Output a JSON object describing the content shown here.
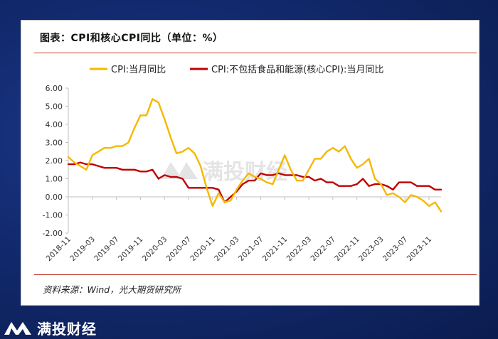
{
  "title": "图表：CPI和核心CPI同比（单位：%）",
  "source": "资料来源：Wind，光大期货研究所",
  "watermark": "满投财经",
  "brand": "满投财经",
  "colors": {
    "cpi": "#f5b800",
    "core": "#c00000",
    "rule": "#c0392b",
    "axis": "#bfbfbf"
  },
  "chart_data": {
    "type": "line",
    "title": "图表：CPI和核心CPI同比（单位：%）",
    "ylim": [
      -2,
      6
    ],
    "yticks": [
      "6.00",
      "5.00",
      "4.00",
      "3.00",
      "2.00",
      "1.00",
      "0.00",
      "-1.00",
      "-2.00"
    ],
    "xticks": [
      {
        "i": 0,
        "label": "2018-11"
      },
      {
        "i": 4,
        "label": "2019-03"
      },
      {
        "i": 8,
        "label": "2019-07"
      },
      {
        "i": 12,
        "label": "2019-11"
      },
      {
        "i": 16,
        "label": "2020-03"
      },
      {
        "i": 20,
        "label": "2020-07"
      },
      {
        "i": 24,
        "label": "2020-11"
      },
      {
        "i": 28,
        "label": "2021-03"
      },
      {
        "i": 32,
        "label": "2021-07"
      },
      {
        "i": 36,
        "label": "2021-11"
      },
      {
        "i": 40,
        "label": "2022-03"
      },
      {
        "i": 44,
        "label": "2022-07"
      },
      {
        "i": 48,
        "label": "2022-11"
      },
      {
        "i": 52,
        "label": "2023-03"
      },
      {
        "i": 56,
        "label": "2023-07"
      },
      {
        "i": 60,
        "label": "2023-11"
      }
    ],
    "x_start": "2018-11",
    "grid": false,
    "legend": "top",
    "series": [
      {
        "name": "CPI:当月同比",
        "color": "#f5b800",
        "values": [
          2.2,
          1.9,
          1.7,
          1.5,
          2.3,
          2.5,
          2.7,
          2.7,
          2.8,
          2.8,
          3.0,
          3.8,
          4.5,
          4.5,
          5.4,
          5.2,
          4.3,
          3.3,
          2.4,
          2.5,
          2.7,
          2.4,
          1.7,
          0.5,
          -0.5,
          0.2,
          -0.3,
          -0.2,
          0.4,
          0.9,
          1.3,
          1.1,
          1.0,
          0.8,
          0.7,
          1.5,
          2.3,
          1.5,
          0.9,
          0.9,
          1.5,
          2.1,
          2.1,
          2.5,
          2.7,
          2.5,
          2.8,
          2.1,
          1.6,
          1.8,
          2.1,
          1.0,
          0.7,
          0.1,
          0.2,
          0.0,
          -0.3,
          0.1,
          0.0,
          -0.2,
          -0.5,
          -0.3,
          -0.8
        ]
      },
      {
        "name": "CPI:不包括食品和能源(核心CPI):当月同比",
        "color": "#c00000",
        "values": [
          1.8,
          1.8,
          1.9,
          1.8,
          1.8,
          1.7,
          1.6,
          1.6,
          1.6,
          1.5,
          1.5,
          1.5,
          1.4,
          1.4,
          1.5,
          1.0,
          1.2,
          1.1,
          1.1,
          1.0,
          0.5,
          0.5,
          0.5,
          0.5,
          0.5,
          0.4,
          -0.3,
          0.0,
          0.3,
          0.7,
          0.9,
          0.9,
          1.3,
          1.2,
          1.2,
          1.3,
          1.2,
          1.2,
          1.2,
          1.1,
          1.1,
          0.9,
          1.0,
          0.8,
          0.8,
          0.6,
          0.6,
          0.6,
          0.7,
          1.0,
          0.6,
          0.7,
          0.7,
          0.6,
          0.4,
          0.8,
          0.8,
          0.8,
          0.6,
          0.6,
          0.6,
          0.4,
          0.4
        ]
      }
    ]
  }
}
